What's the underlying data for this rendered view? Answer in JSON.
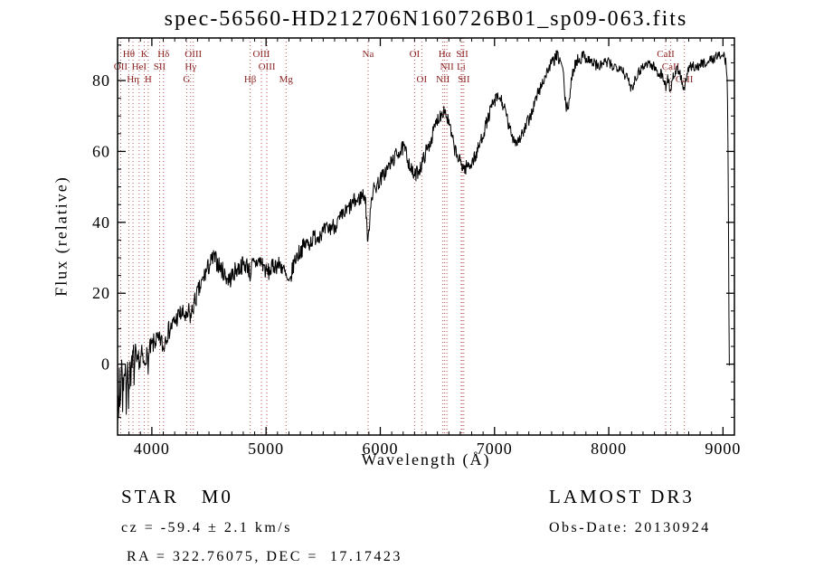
{
  "title": "spec-56560-HD212706N160726B01_sp09-063.fits",
  "chart_data": {
    "type": "line",
    "title": "spec-56560-HD212706N160726B01_sp09-063.fits",
    "xlabel": "Wavelength (Å)",
    "ylabel": "Flux (relative)",
    "xlim": [
      3700,
      9100
    ],
    "ylim": [
      -20,
      92
    ],
    "xticks": [
      4000,
      5000,
      6000,
      7000,
      8000,
      9000
    ],
    "yticks": [
      0,
      20,
      40,
      60,
      80
    ],
    "x_minor_step": 100,
    "y_minor_step": 5,
    "grid": false,
    "line_color": "#000000",
    "marker_color": "#b85450",
    "label_color": "#8b2222",
    "spectral_lines": [
      {
        "wavelength": 3727,
        "label": "OII",
        "row": 1
      },
      {
        "wavelength": 3798,
        "label": "Hθ",
        "row": 0
      },
      {
        "wavelength": 3835,
        "label": "Hη",
        "row": 2
      },
      {
        "wavelength": 3889,
        "label": "HeI",
        "row": 1
      },
      {
        "wavelength": 3934,
        "label": "K",
        "row": 0
      },
      {
        "wavelength": 3968,
        "label": "H",
        "row": 2
      },
      {
        "wavelength": 4068,
        "label": "SII",
        "row": 1
      },
      {
        "wavelength": 4102,
        "label": "Hδ",
        "row": 0
      },
      {
        "wavelength": 4305,
        "label": "G",
        "row": 2
      },
      {
        "wavelength": 4340,
        "label": "Hγ",
        "row": 1
      },
      {
        "wavelength": 4363,
        "label": "OIII",
        "row": 0
      },
      {
        "wavelength": 4861,
        "label": "Hβ",
        "row": 2
      },
      {
        "wavelength": 4959,
        "label": "OIII",
        "row": 0
      },
      {
        "wavelength": 5007,
        "label": "OIII",
        "row": 1
      },
      {
        "wavelength": 5175,
        "label": "Mg",
        "row": 2
      },
      {
        "wavelength": 5893,
        "label": "Na",
        "row": 0
      },
      {
        "wavelength": 6300,
        "label": "OI",
        "row": 0
      },
      {
        "wavelength": 6363,
        "label": "OI",
        "row": 2
      },
      {
        "wavelength": 6548,
        "label": "NII",
        "row": 2
      },
      {
        "wavelength": 6563,
        "label": "Hα",
        "row": 0
      },
      {
        "wavelength": 6583,
        "label": "NII",
        "row": 1
      },
      {
        "wavelength": 6708,
        "label": "Li",
        "row": 1
      },
      {
        "wavelength": 6717,
        "label": "SII",
        "row": 0
      },
      {
        "wavelength": 6731,
        "label": "SII",
        "row": 2
      },
      {
        "wavelength": 8498,
        "label": "CaII",
        "row": 0
      },
      {
        "wavelength": 8542,
        "label": "CaII",
        "row": 1
      },
      {
        "wavelength": 8662,
        "label": "CaII",
        "row": 2
      }
    ],
    "noise": {
      "seed": 7,
      "step": 4,
      "amp_blue": 3.0,
      "amp_red": 1.3
    },
    "spectrum_anchors": [
      [
        3700,
        -9
      ],
      [
        3708,
        -14
      ],
      [
        3716,
        -4
      ],
      [
        3724,
        -11
      ],
      [
        3732,
        -3
      ],
      [
        3742,
        -8
      ],
      [
        3752,
        -2
      ],
      [
        3762,
        -6
      ],
      [
        3772,
        -1
      ],
      [
        3782,
        -5
      ],
      [
        3792,
        0
      ],
      [
        3802,
        -4
      ],
      [
        3812,
        1
      ],
      [
        3824,
        -3
      ],
      [
        3836,
        1
      ],
      [
        3848,
        -2
      ],
      [
        3860,
        2
      ],
      [
        3872,
        -1
      ],
      [
        3884,
        2
      ],
      [
        3896,
        0
      ],
      [
        3910,
        3
      ],
      [
        3922,
        1
      ],
      [
        3934,
        -1
      ],
      [
        3948,
        3
      ],
      [
        3958,
        2
      ],
      [
        3968,
        0
      ],
      [
        3980,
        4
      ],
      [
        4000,
        5
      ],
      [
        4020,
        6
      ],
      [
        4040,
        7
      ],
      [
        4060,
        6
      ],
      [
        4080,
        7
      ],
      [
        4102,
        4
      ],
      [
        4120,
        8
      ],
      [
        4140,
        9
      ],
      [
        4160,
        10
      ],
      [
        4180,
        11
      ],
      [
        4200,
        12
      ],
      [
        4220,
        13
      ],
      [
        4240,
        14
      ],
      [
        4265,
        14
      ],
      [
        4285,
        14
      ],
      [
        4305,
        12
      ],
      [
        4322,
        15
      ],
      [
        4340,
        13
      ],
      [
        4360,
        16
      ],
      [
        4380,
        18
      ],
      [
        4400,
        20
      ],
      [
        4430,
        22
      ],
      [
        4460,
        25
      ],
      [
        4490,
        27
      ],
      [
        4520,
        29
      ],
      [
        4545,
        30
      ],
      [
        4565,
        29
      ],
      [
        4585,
        28
      ],
      [
        4605,
        27
      ],
      [
        4625,
        26
      ],
      [
        4645,
        25
      ],
      [
        4665,
        24
      ],
      [
        4685,
        24
      ],
      [
        4705,
        25
      ],
      [
        4725,
        26
      ],
      [
        4745,
        27
      ],
      [
        4765,
        27
      ],
      [
        4790,
        28
      ],
      [
        4815,
        28
      ],
      [
        4840,
        28
      ],
      [
        4861,
        25
      ],
      [
        4880,
        28
      ],
      [
        4900,
        28
      ],
      [
        4925,
        29
      ],
      [
        4950,
        29
      ],
      [
        4975,
        28
      ],
      [
        5000,
        26
      ],
      [
        5025,
        26
      ],
      [
        5050,
        27
      ],
      [
        5075,
        28
      ],
      [
        5100,
        28
      ],
      [
        5125,
        28
      ],
      [
        5150,
        27
      ],
      [
        5170,
        25
      ],
      [
        5190,
        23
      ],
      [
        5205,
        22
      ],
      [
        5220,
        25
      ],
      [
        5240,
        28
      ],
      [
        5260,
        30
      ],
      [
        5280,
        31
      ],
      [
        5300,
        32
      ],
      [
        5325,
        33
      ],
      [
        5350,
        34
      ],
      [
        5375,
        34
      ],
      [
        5400,
        35
      ],
      [
        5425,
        36
      ],
      [
        5450,
        36
      ],
      [
        5475,
        37
      ],
      [
        5500,
        37
      ],
      [
        5525,
        38
      ],
      [
        5550,
        38
      ],
      [
        5575,
        39
      ],
      [
        5600,
        39
      ],
      [
        5625,
        40
      ],
      [
        5650,
        41
      ],
      [
        5675,
        42
      ],
      [
        5700,
        43
      ],
      [
        5725,
        44
      ],
      [
        5750,
        45
      ],
      [
        5775,
        46
      ],
      [
        5800,
        46
      ],
      [
        5825,
        47
      ],
      [
        5850,
        48
      ],
      [
        5868,
        47
      ],
      [
        5880,
        41
      ],
      [
        5893,
        33
      ],
      [
        5906,
        41
      ],
      [
        5920,
        47
      ],
      [
        5940,
        49
      ],
      [
        5960,
        50
      ],
      [
        5980,
        51
      ],
      [
        6000,
        52
      ],
      [
        6020,
        53
      ],
      [
        6040,
        54
      ],
      [
        6060,
        55
      ],
      [
        6080,
        56
      ],
      [
        6100,
        57
      ],
      [
        6120,
        58
      ],
      [
        6140,
        59
      ],
      [
        6160,
        60
      ],
      [
        6180,
        60
      ],
      [
        6200,
        61
      ],
      [
        6220,
        60
      ],
      [
        6240,
        58
      ],
      [
        6260,
        56
      ],
      [
        6280,
        54
      ],
      [
        6300,
        53
      ],
      [
        6320,
        54
      ],
      [
        6340,
        55
      ],
      [
        6360,
        56
      ],
      [
        6380,
        58
      ],
      [
        6400,
        60
      ],
      [
        6420,
        61
      ],
      [
        6440,
        63
      ],
      [
        6460,
        65
      ],
      [
        6480,
        67
      ],
      [
        6500,
        69
      ],
      [
        6520,
        70
      ],
      [
        6540,
        71
      ],
      [
        6560,
        72
      ],
      [
        6580,
        70
      ],
      [
        6600,
        68
      ],
      [
        6620,
        65
      ],
      [
        6640,
        62
      ],
      [
        6660,
        60
      ],
      [
        6680,
        58
      ],
      [
        6700,
        57
      ],
      [
        6720,
        56
      ],
      [
        6740,
        55
      ],
      [
        6760,
        56
      ],
      [
        6780,
        56
      ],
      [
        6800,
        57
      ],
      [
        6820,
        58
      ],
      [
        6840,
        59
      ],
      [
        6860,
        61
      ],
      [
        6880,
        63
      ],
      [
        6900,
        65
      ],
      [
        6920,
        67
      ],
      [
        6940,
        69
      ],
      [
        6960,
        71
      ],
      [
        6980,
        73
      ],
      [
        7000,
        74
      ],
      [
        7020,
        75
      ],
      [
        7045,
        75
      ],
      [
        7065,
        74
      ],
      [
        7085,
        72
      ],
      [
        7105,
        70
      ],
      [
        7125,
        67
      ],
      [
        7145,
        65
      ],
      [
        7165,
        64
      ],
      [
        7185,
        63
      ],
      [
        7205,
        63
      ],
      [
        7225,
        64
      ],
      [
        7245,
        65
      ],
      [
        7265,
        66
      ],
      [
        7285,
        68
      ],
      [
        7305,
        69
      ],
      [
        7325,
        71
      ],
      [
        7345,
        73
      ],
      [
        7365,
        75
      ],
      [
        7385,
        77
      ],
      [
        7405,
        78
      ],
      [
        7425,
        80
      ],
      [
        7445,
        81
      ],
      [
        7465,
        83
      ],
      [
        7485,
        84
      ],
      [
        7505,
        85
      ],
      [
        7525,
        86
      ],
      [
        7545,
        87
      ],
      [
        7565,
        86
      ],
      [
        7585,
        85
      ],
      [
        7605,
        81
      ],
      [
        7618,
        74
      ],
      [
        7632,
        72
      ],
      [
        7646,
        73
      ],
      [
        7660,
        76
      ],
      [
        7675,
        80
      ],
      [
        7690,
        83
      ],
      [
        7710,
        85
      ],
      [
        7730,
        86
      ],
      [
        7750,
        86
      ],
      [
        7770,
        87
      ],
      [
        7790,
        87
      ],
      [
        7810,
        86
      ],
      [
        7830,
        86
      ],
      [
        7850,
        85
      ],
      [
        7875,
        85
      ],
      [
        7900,
        84
      ],
      [
        7925,
        84
      ],
      [
        7950,
        85
      ],
      [
        7975,
        85
      ],
      [
        8000,
        85
      ],
      [
        8025,
        84
      ],
      [
        8050,
        84
      ],
      [
        8075,
        84
      ],
      [
        8100,
        84
      ],
      [
        8125,
        83
      ],
      [
        8150,
        81
      ],
      [
        8175,
        80
      ],
      [
        8195,
        78
      ],
      [
        8215,
        79
      ],
      [
        8235,
        81
      ],
      [
        8255,
        82
      ],
      [
        8275,
        83
      ],
      [
        8295,
        84
      ],
      [
        8315,
        84
      ],
      [
        8335,
        85
      ],
      [
        8355,
        85
      ],
      [
        8375,
        84
      ],
      [
        8395,
        84
      ],
      [
        8415,
        83
      ],
      [
        8435,
        82
      ],
      [
        8455,
        82
      ],
      [
        8475,
        81
      ],
      [
        8498,
        78
      ],
      [
        8516,
        81
      ],
      [
        8542,
        77
      ],
      [
        8560,
        81
      ],
      [
        8580,
        82
      ],
      [
        8600,
        83
      ],
      [
        8620,
        82
      ],
      [
        8640,
        80
      ],
      [
        8662,
        77
      ],
      [
        8680,
        81
      ],
      [
        8700,
        83
      ],
      [
        8720,
        84
      ],
      [
        8740,
        84
      ],
      [
        8765,
        84
      ],
      [
        8790,
        84
      ],
      [
        8815,
        85
      ],
      [
        8840,
        85
      ],
      [
        8865,
        85
      ],
      [
        8890,
        86
      ],
      [
        8915,
        86
      ],
      [
        8940,
        87
      ],
      [
        8965,
        87
      ],
      [
        8990,
        87
      ],
      [
        9010,
        87
      ],
      [
        9025,
        85
      ],
      [
        9038,
        80
      ],
      [
        9046,
        55
      ],
      [
        9052,
        15
      ],
      [
        9056,
        0
      ]
    ]
  },
  "footer": {
    "class_label": "STAR   M0",
    "cz": "cz = -59.4 ± 2.1 km/s",
    "radec": "RA = 322.76075, DEC =  17.17423",
    "survey": "LAMOST DR3",
    "obs_date": "Obs-Date: 20130924"
  }
}
